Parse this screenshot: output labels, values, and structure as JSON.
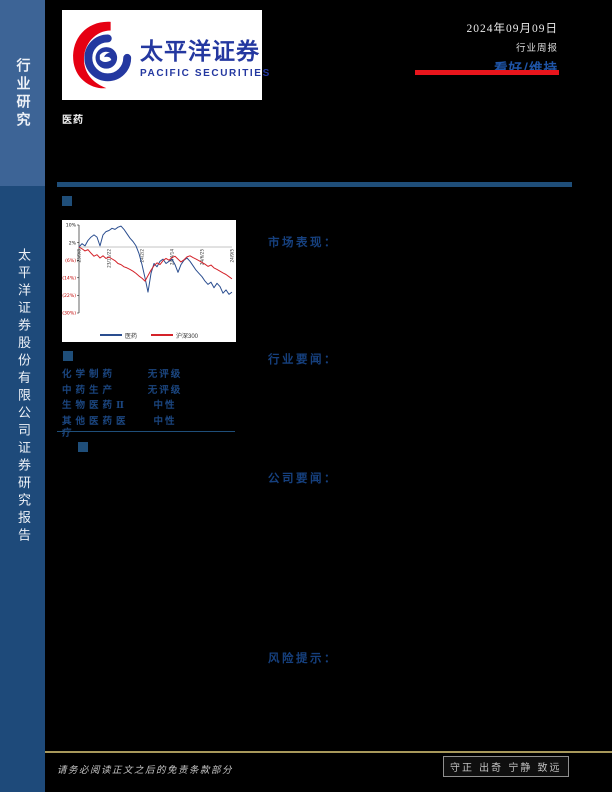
{
  "colors": {
    "sidebar_top": "#3D6496",
    "sidebar_bottom": "#1E4A7A",
    "bar_blue": "#1F4E79",
    "rating_blue": "#1F55A8",
    "section_blue": "#16407E",
    "table_blue": "#1B4680",
    "red_bar": "#E8151C",
    "gold": "#A7985B",
    "logo_blue": "#2438A0",
    "logo_red": "#E60012"
  },
  "sidebar": {
    "top_label": "行业研究",
    "bottom_label": "太平洋证券股份有限公司证券研究报告"
  },
  "logo": {
    "title_cn": "太平洋证券",
    "title_en": "PACIFIC SECURITIES"
  },
  "header": {
    "date": "2024年09月09日",
    "report_type": "行业周报",
    "rating": "看好/维持",
    "industry": "医药"
  },
  "sections": {
    "market": "市场表现：",
    "industry_news": "行业要闻：",
    "company_news": "公司要闻：",
    "risk": "风险提示："
  },
  "ratings_table": {
    "rows": [
      {
        "name": "化学制药",
        "rating": "无评级"
      },
      {
        "name": "中药生产",
        "rating": "无评级"
      },
      {
        "name": "生物医药Ⅱ",
        "rating": "中性"
      },
      {
        "name": "其他医药医疗",
        "rating": "中性"
      }
    ]
  },
  "footer": {
    "disclaimer": "请务必阅读正文之后的免责条款部分",
    "motto": "守正 出奇 宁静 致远"
  },
  "chart_data": {
    "type": "line",
    "title": "",
    "xlabel": "",
    "ylabel": "",
    "ylim": [
      -30,
      10
    ],
    "yticks": [
      10,
      2,
      -6,
      -14,
      -22,
      -30
    ],
    "ytick_labels": [
      "10%",
      "2%",
      "(6%)",
      "(14%)",
      "(22%)",
      "(30%)"
    ],
    "negative_tick_color": "#C00000",
    "grid": "zero-line-only",
    "legend_position": "bottom",
    "x_ticks": [
      {
        "label": "23/9/8",
        "index": 0
      },
      {
        "label": "23/11/22",
        "index": 10
      },
      {
        "label": "24/2/2",
        "index": 21
      },
      {
        "label": "24/4/14",
        "index": 31
      },
      {
        "label": "24/6/25",
        "index": 41
      },
      {
        "label": "24/9/5",
        "index": 51
      }
    ],
    "series": [
      {
        "name": "医药",
        "color": "#2A4D8F",
        "values": [
          0,
          1.5,
          0.5,
          3,
          4.5,
          5.5,
          4.5,
          0.5,
          5.5,
          7,
          7.5,
          8.5,
          8,
          9,
          9.5,
          8,
          6,
          4,
          2.5,
          0.5,
          -3,
          -8,
          -14,
          -20.5,
          -12,
          -7.5,
          -9,
          -6.5,
          -5.5,
          -7.5,
          -6.5,
          -5.5,
          -8,
          -11.5,
          -8,
          -6,
          -5,
          -6.5,
          -8.5,
          -10.5,
          -12,
          -13.5,
          -15.5,
          -17,
          -16,
          -18.5,
          -16.5,
          -18,
          -21,
          -19.5,
          -21.5,
          -20.5
        ]
      },
      {
        "name": "沪深300",
        "color": "#D4232A",
        "values": [
          0,
          -0.8,
          -1.8,
          -1.2,
          -2.8,
          -4.2,
          -3.5,
          -5,
          -4,
          -5.2,
          -4.6,
          -5.4,
          -6.2,
          -7.5,
          -8,
          -9,
          -9.5,
          -10.2,
          -11,
          -12,
          -13.2,
          -14.2,
          -15.5,
          -13,
          -10.5,
          -8.5,
          -7.2,
          -8,
          -6.2,
          -5.2,
          -6,
          -4.8,
          -4.2,
          -5.5,
          -6.8,
          -5.8,
          -4.5,
          -4,
          -4.8,
          -5.5,
          -6.2,
          -7,
          -7.8,
          -8.8,
          -8.2,
          -9.5,
          -10.2,
          -11,
          -11.8,
          -12.5,
          -13.5,
          -14.5
        ]
      }
    ]
  }
}
